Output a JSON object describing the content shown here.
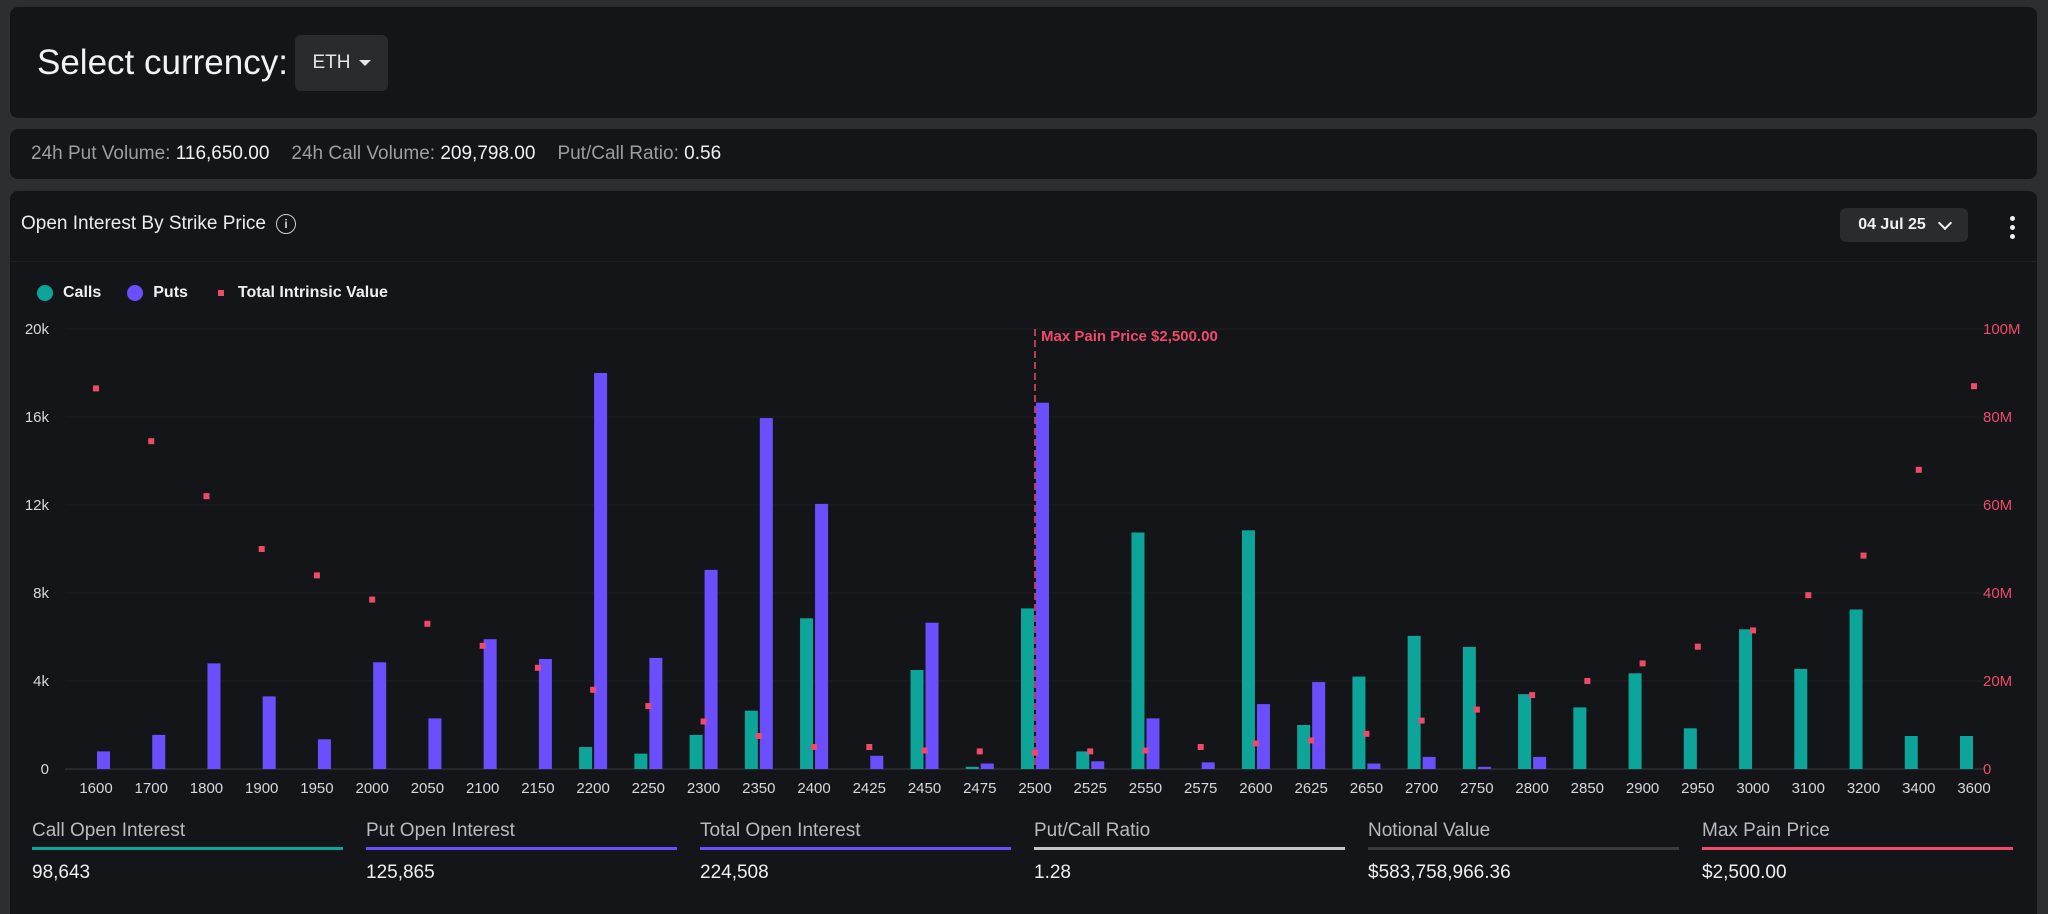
{
  "header": {
    "select_label": "Select currency:",
    "currency": "ETH"
  },
  "stats": [
    {
      "label": "24h Put Volume:",
      "value": "116,650.00"
    },
    {
      "label": "24h Call Volume:",
      "value": "209,798.00"
    },
    {
      "label": "Put/Call Ratio:",
      "value": "0.56"
    }
  ],
  "oi": {
    "title": "Open Interest By Strike Price",
    "expiry": "04 Jul 25"
  },
  "legend": {
    "calls": "Calls",
    "puts": "Puts",
    "tiv": "Total Intrinsic Value"
  },
  "colors": {
    "calls": "#0da59a",
    "puts": "#6b4fff",
    "tiv": "#f04a6a",
    "put_call_line": "#c5c6ca",
    "notional_line": "#3a3b40"
  },
  "chart_data": {
    "type": "bar",
    "categories": [
      "1600",
      "1700",
      "1800",
      "1900",
      "1950",
      "2000",
      "2050",
      "2100",
      "2150",
      "2200",
      "2250",
      "2300",
      "2350",
      "2400",
      "2425",
      "2450",
      "2475",
      "2500",
      "2525",
      "2550",
      "2575",
      "2600",
      "2625",
      "2650",
      "2700",
      "2750",
      "2800",
      "2850",
      "2900",
      "2950",
      "3000",
      "3100",
      "3200",
      "3400",
      "3600"
    ],
    "series": [
      {
        "name": "Calls",
        "axis": "left",
        "values": [
          0,
          0,
          0,
          0,
          0,
          0,
          0,
          0,
          0,
          1000,
          700,
          1550,
          2650,
          6850,
          0,
          4500,
          100,
          7300,
          800,
          10750,
          0,
          10850,
          2000,
          4200,
          6050,
          5550,
          3400,
          2800,
          4350,
          1850,
          6350,
          4550,
          7250,
          1500,
          1500
        ]
      },
      {
        "name": "Puts",
        "axis": "left",
        "values": [
          800,
          1550,
          4800,
          3300,
          1350,
          4850,
          2300,
          5900,
          5000,
          18000,
          5050,
          9050,
          15950,
          12050,
          600,
          6650,
          250,
          16650,
          350,
          2300,
          300,
          2950,
          3950,
          250,
          550,
          100,
          550,
          0,
          0,
          0,
          0,
          0,
          0,
          0,
          0
        ]
      },
      {
        "name": "Total Intrinsic Value",
        "axis": "right",
        "values": [
          86.5,
          74.5,
          62,
          50,
          44,
          38.5,
          33,
          28,
          23,
          18,
          14.3,
          10.8,
          7.5,
          5,
          5,
          4.2,
          4,
          3.7,
          4,
          4.2,
          5,
          5.8,
          6.5,
          8,
          11,
          13.5,
          16.8,
          20,
          24,
          27.8,
          31.5,
          39.5,
          48.5,
          68,
          87
        ]
      }
    ],
    "yleft": {
      "ticks": [
        "0",
        "4k",
        "8k",
        "12k",
        "16k",
        "20k"
      ],
      "max": 20000
    },
    "yright": {
      "ticks": [
        "0",
        "20M",
        "40M",
        "60M",
        "80M",
        "100M"
      ],
      "max": 100
    },
    "annotation": {
      "strike": "2500",
      "label": "Max Pain Price $2,500.00"
    },
    "legend_position": "top-left",
    "grid": true
  },
  "metrics": [
    {
      "label": "Call Open Interest",
      "value": "98,643",
      "color": "#0da59a"
    },
    {
      "label": "Put Open Interest",
      "value": "125,865",
      "color": "#6b4fff"
    },
    {
      "label": "Total Open Interest",
      "value": "224,508",
      "color": "#6b4fff"
    },
    {
      "label": "Put/Call Ratio",
      "value": "1.28",
      "color": "#c5c6ca"
    },
    {
      "label": "Notional Value",
      "value": "$583,758,966.36",
      "color": "#3a3b40"
    },
    {
      "label": "Max Pain Price",
      "value": "$2,500.00",
      "color": "#f04a6a"
    }
  ]
}
